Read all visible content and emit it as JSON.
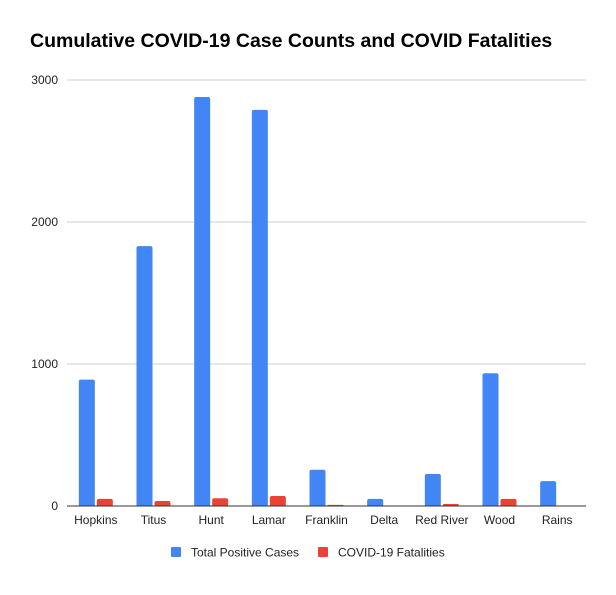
{
  "chart_data": {
    "type": "bar",
    "title": "Cumulative COVID-19 Case Counts and COVID Fatalities",
    "xlabel": "",
    "ylabel": "",
    "categories": [
      "Hopkins",
      "Titus",
      "Hunt",
      "Lamar",
      "Franklin",
      "Delta",
      "Red River",
      "Wood",
      "Rains"
    ],
    "series": [
      {
        "name": "Total Positive Cases",
        "color": "#4285f4",
        "values": [
          890,
          1830,
          2880,
          2790,
          255,
          50,
          225,
          935,
          175
        ]
      },
      {
        "name": "COVID-19 Fatalities",
        "color": "#ea4335",
        "values": [
          50,
          35,
          55,
          70,
          8,
          2,
          14,
          50,
          3
        ]
      }
    ],
    "ylim": [
      0,
      3000
    ],
    "yticks": [
      0,
      1000,
      2000,
      3000
    ],
    "grid": true,
    "legend_position": "bottom"
  }
}
